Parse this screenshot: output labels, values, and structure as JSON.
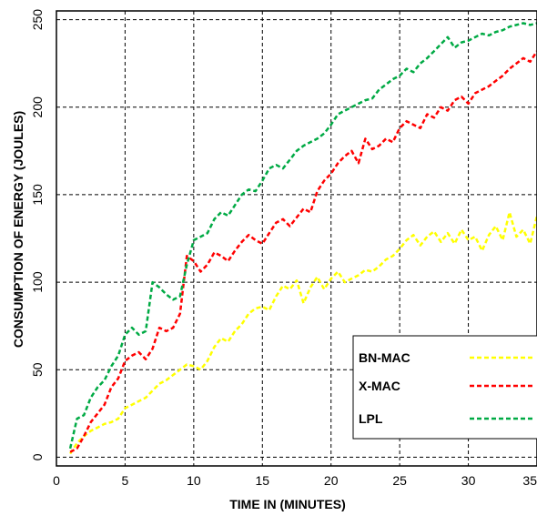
{
  "chart_data": {
    "type": "line",
    "title": "",
    "xlabel": "TIME IN (MINUTES)",
    "ylabel": "CONSUMPTION OF ENERGY (JOULES)",
    "xlim": [
      0,
      35
    ],
    "ylim": [
      -5,
      255
    ],
    "xticks": [
      0,
      5,
      10,
      15,
      20,
      25,
      30,
      35
    ],
    "yticks": [
      0,
      50,
      100,
      150,
      200,
      250
    ],
    "grid": true,
    "legend_position": "bottom-right",
    "series": [
      {
        "name": "BN-MAC",
        "color": "#ffff00",
        "x": [
          1,
          1.5,
          2,
          2.5,
          3,
          3.5,
          4,
          4.5,
          5,
          5.5,
          6,
          6.5,
          7,
          7.5,
          8,
          8.5,
          9,
          9.5,
          10,
          10.5,
          11,
          11.5,
          12,
          12.5,
          13,
          13.5,
          14,
          14.5,
          15,
          15.5,
          16,
          16.5,
          17,
          17.5,
          18,
          18.5,
          19,
          19.5,
          20,
          20.5,
          21,
          21.5,
          22,
          22.5,
          23,
          23.5,
          24,
          24.5,
          25,
          25.5,
          26,
          26.5,
          27,
          27.5,
          28,
          28.5,
          29,
          29.5,
          30,
          30.5,
          31,
          31.5,
          32,
          32.5,
          33,
          33.5,
          34,
          34.5,
          35
        ],
        "values": [
          2,
          8,
          12,
          15,
          17,
          19,
          20,
          22,
          28,
          30,
          32,
          34,
          38,
          42,
          44,
          47,
          50,
          53,
          52,
          50,
          55,
          63,
          68,
          66,
          72,
          76,
          82,
          85,
          86,
          84,
          92,
          98,
          96,
          101,
          88,
          97,
          103,
          96,
          102,
          106,
          100,
          102,
          104,
          107,
          106,
          109,
          113,
          115,
          119,
          124,
          127,
          121,
          126,
          129,
          123,
          128,
          122,
          130,
          124,
          126,
          118,
          127,
          132,
          124,
          140,
          126,
          130,
          122,
          138
        ]
      },
      {
        "name": "X-MAC",
        "color": "#ff0000",
        "x": [
          1,
          1.5,
          2,
          2.5,
          3,
          3.5,
          4,
          4.5,
          5,
          5.5,
          6,
          6.5,
          7,
          7.5,
          8,
          8.5,
          9,
          9.5,
          10,
          10.5,
          11,
          11.5,
          12,
          12.5,
          13,
          13.5,
          14,
          14.5,
          15,
          15.5,
          16,
          16.5,
          17,
          17.5,
          18,
          18.5,
          19,
          19.5,
          20,
          20.5,
          21,
          21.5,
          22,
          22.5,
          23,
          23.5,
          24,
          24.5,
          25,
          25.5,
          26,
          26.5,
          27,
          27.5,
          28,
          28.5,
          29,
          29.5,
          30,
          30.5,
          31,
          31.5,
          32,
          32.5,
          33,
          33.5,
          34,
          34.5,
          35
        ],
        "values": [
          3,
          5,
          12,
          20,
          25,
          30,
          40,
          45,
          55,
          58,
          60,
          56,
          62,
          74,
          72,
          74,
          82,
          115,
          112,
          106,
          110,
          117,
          115,
          112,
          118,
          123,
          127,
          124,
          122,
          128,
          134,
          136,
          132,
          137,
          142,
          140,
          152,
          158,
          162,
          168,
          172,
          175,
          168,
          182,
          176,
          178,
          182,
          180,
          188,
          192,
          190,
          188,
          196,
          194,
          200,
          198,
          204,
          206,
          202,
          208,
          210,
          212,
          215,
          218,
          222,
          225,
          228,
          226,
          232
        ]
      },
      {
        "name": "LPL",
        "color": "#00aa44",
        "x": [
          1,
          1.5,
          2,
          2.5,
          3,
          3.5,
          4,
          4.5,
          5,
          5.5,
          6,
          6.5,
          7,
          7.5,
          8,
          8.5,
          9,
          9.5,
          10,
          10.5,
          11,
          11.5,
          12,
          12.5,
          13,
          13.5,
          14,
          14.5,
          15,
          15.5,
          16,
          16.5,
          17,
          17.5,
          18,
          18.5,
          19,
          19.5,
          20,
          20.5,
          21,
          21.5,
          22,
          22.5,
          23,
          23.5,
          24,
          24.5,
          25,
          25.5,
          26,
          26.5,
          27,
          27.5,
          28,
          28.5,
          29,
          29.5,
          30,
          30.5,
          31,
          31.5,
          32,
          32.5,
          33,
          33.5,
          34,
          34.5,
          35
        ],
        "values": [
          5,
          22,
          24,
          34,
          40,
          44,
          52,
          58,
          70,
          74,
          70,
          72,
          100,
          97,
          93,
          90,
          92,
          110,
          124,
          126,
          128,
          136,
          140,
          138,
          144,
          150,
          153,
          152,
          158,
          165,
          167,
          165,
          170,
          175,
          178,
          180,
          182,
          185,
          190,
          196,
          198,
          200,
          202,
          204,
          205,
          210,
          213,
          216,
          218,
          222,
          220,
          225,
          228,
          232,
          236,
          240,
          234,
          237,
          238,
          240,
          242,
          241,
          243,
          244,
          246,
          247,
          248,
          247,
          248
        ]
      }
    ]
  }
}
